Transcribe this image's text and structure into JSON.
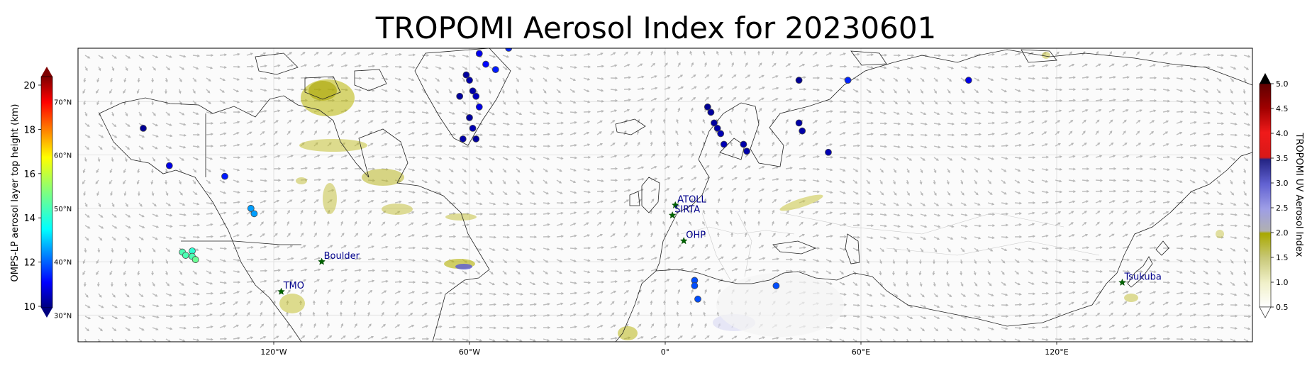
{
  "title": "TROPOMI Aerosol Index for 20230601",
  "left_colorbar": {
    "label": "OMPS-LP aerosol layer top height (km)",
    "ticks": [
      "10",
      "12",
      "14",
      "16",
      "18",
      "20"
    ],
    "range": [
      10,
      20
    ],
    "colormap": "jet",
    "extend": "both"
  },
  "right_colorbar": {
    "label": "TROPOMI UV Aerosol Index",
    "ticks": [
      "0.5",
      "1.0",
      "1.5",
      "2.0",
      "2.5",
      "3.0",
      "3.5",
      "4.0",
      "4.5",
      "5.0"
    ],
    "range": [
      0.5,
      5.0
    ],
    "colors": [
      "#ffffff",
      "#f0f0c8",
      "#c8c878",
      "#a8a800",
      "#b4b4b4",
      "#9898e8",
      "#5858c8",
      "#202080",
      "#e81818",
      "#600000"
    ],
    "extend": "both"
  },
  "map": {
    "projection": "PlateCarree",
    "lon_range": [
      -180,
      180
    ],
    "lat_range": [
      25,
      80
    ],
    "lon_ticks": [
      {
        "value": -120,
        "label": "120°W"
      },
      {
        "value": -60,
        "label": "60°W"
      },
      {
        "value": 0,
        "label": "0°"
      },
      {
        "value": 60,
        "label": "60°E"
      },
      {
        "value": 120,
        "label": "120°E"
      }
    ],
    "lat_ticks": [
      {
        "value": 30,
        "label": "30°N"
      },
      {
        "value": 40,
        "label": "40°N"
      },
      {
        "value": 50,
        "label": "50°N"
      },
      {
        "value": 60,
        "label": "60°N"
      },
      {
        "value": 70,
        "label": "70°N"
      }
    ],
    "wind_vector_color": "#b0b0b0",
    "coast_color": "#222222"
  },
  "sites": [
    {
      "name": "TMO",
      "lon": -117.7,
      "lat": 34.4
    },
    {
      "name": "Boulder",
      "lon": -105.3,
      "lat": 40.0
    },
    {
      "name": "ATOLL",
      "lon": 3.1,
      "lat": 50.6
    },
    {
      "name": "SIRTA",
      "lon": 2.2,
      "lat": 48.7
    },
    {
      "name": "OHP",
      "lon": 5.7,
      "lat": 43.9
    },
    {
      "name": "Tsukuba",
      "lon": 140.1,
      "lat": 36.1
    }
  ],
  "omps_points": [
    {
      "lon": -160,
      "lat": 65,
      "h": 10.2
    },
    {
      "lon": -152,
      "lat": 58,
      "h": 11.0
    },
    {
      "lon": -135,
      "lat": 56,
      "h": 11.5
    },
    {
      "lon": -127,
      "lat": 50,
      "h": 12.8
    },
    {
      "lon": -126,
      "lat": 49,
      "h": 12.8
    },
    {
      "lon": -148,
      "lat": 41.8,
      "h": 14.5
    },
    {
      "lon": -147,
      "lat": 41.2,
      "h": 14.5
    },
    {
      "lon": -145,
      "lat": 42.0,
      "h": 14.2
    },
    {
      "lon": -145,
      "lat": 41.0,
      "h": 14.5
    },
    {
      "lon": -144,
      "lat": 40.4,
      "h": 14.8
    },
    {
      "lon": -61,
      "lat": 75,
      "h": 10.3
    },
    {
      "lon": -60,
      "lat": 74,
      "h": 10.4
    },
    {
      "lon": -59,
      "lat": 72,
      "h": 10.4
    },
    {
      "lon": -58,
      "lat": 71,
      "h": 10.6
    },
    {
      "lon": -57,
      "lat": 69,
      "h": 11.0
    },
    {
      "lon": -63,
      "lat": 71,
      "h": 10.3
    },
    {
      "lon": -60,
      "lat": 67,
      "h": 10.3
    },
    {
      "lon": -59,
      "lat": 65,
      "h": 10.5
    },
    {
      "lon": -58,
      "lat": 63,
      "h": 10.3
    },
    {
      "lon": -62,
      "lat": 63,
      "h": 10.4
    },
    {
      "lon": -57,
      "lat": 79,
      "h": 11.1
    },
    {
      "lon": -55,
      "lat": 77,
      "h": 11.3
    },
    {
      "lon": -52,
      "lat": 76,
      "h": 11.5
    },
    {
      "lon": -48,
      "lat": 80,
      "h": 11.6
    },
    {
      "lon": 13,
      "lat": 69,
      "h": 10.2
    },
    {
      "lon": 14,
      "lat": 68,
      "h": 10.3
    },
    {
      "lon": 15,
      "lat": 66,
      "h": 10.3
    },
    {
      "lon": 16,
      "lat": 65,
      "h": 10.4
    },
    {
      "lon": 17,
      "lat": 64,
      "h": 10.5
    },
    {
      "lon": 18,
      "lat": 62,
      "h": 10.5
    },
    {
      "lon": 24,
      "lat": 62,
      "h": 10.4
    },
    {
      "lon": 25,
      "lat": 60.7,
      "h": 10.4
    },
    {
      "lon": 41,
      "lat": 74,
      "h": 10.2
    },
    {
      "lon": 41,
      "lat": 66,
      "h": 10.4
    },
    {
      "lon": 42,
      "lat": 64.5,
      "h": 10.4
    },
    {
      "lon": 50,
      "lat": 60.5,
      "h": 10.5
    },
    {
      "lon": 56,
      "lat": 74,
      "h": 11.6
    },
    {
      "lon": 93,
      "lat": 74,
      "h": 11.0
    },
    {
      "lon": 9,
      "lat": 36.5,
      "h": 12.0
    },
    {
      "lon": 9,
      "lat": 35.5,
      "h": 12.0
    },
    {
      "lon": 10,
      "lat": 33,
      "h": 12.0
    },
    {
      "lon": 34,
      "lat": 35.5,
      "h": 12.0
    }
  ]
}
